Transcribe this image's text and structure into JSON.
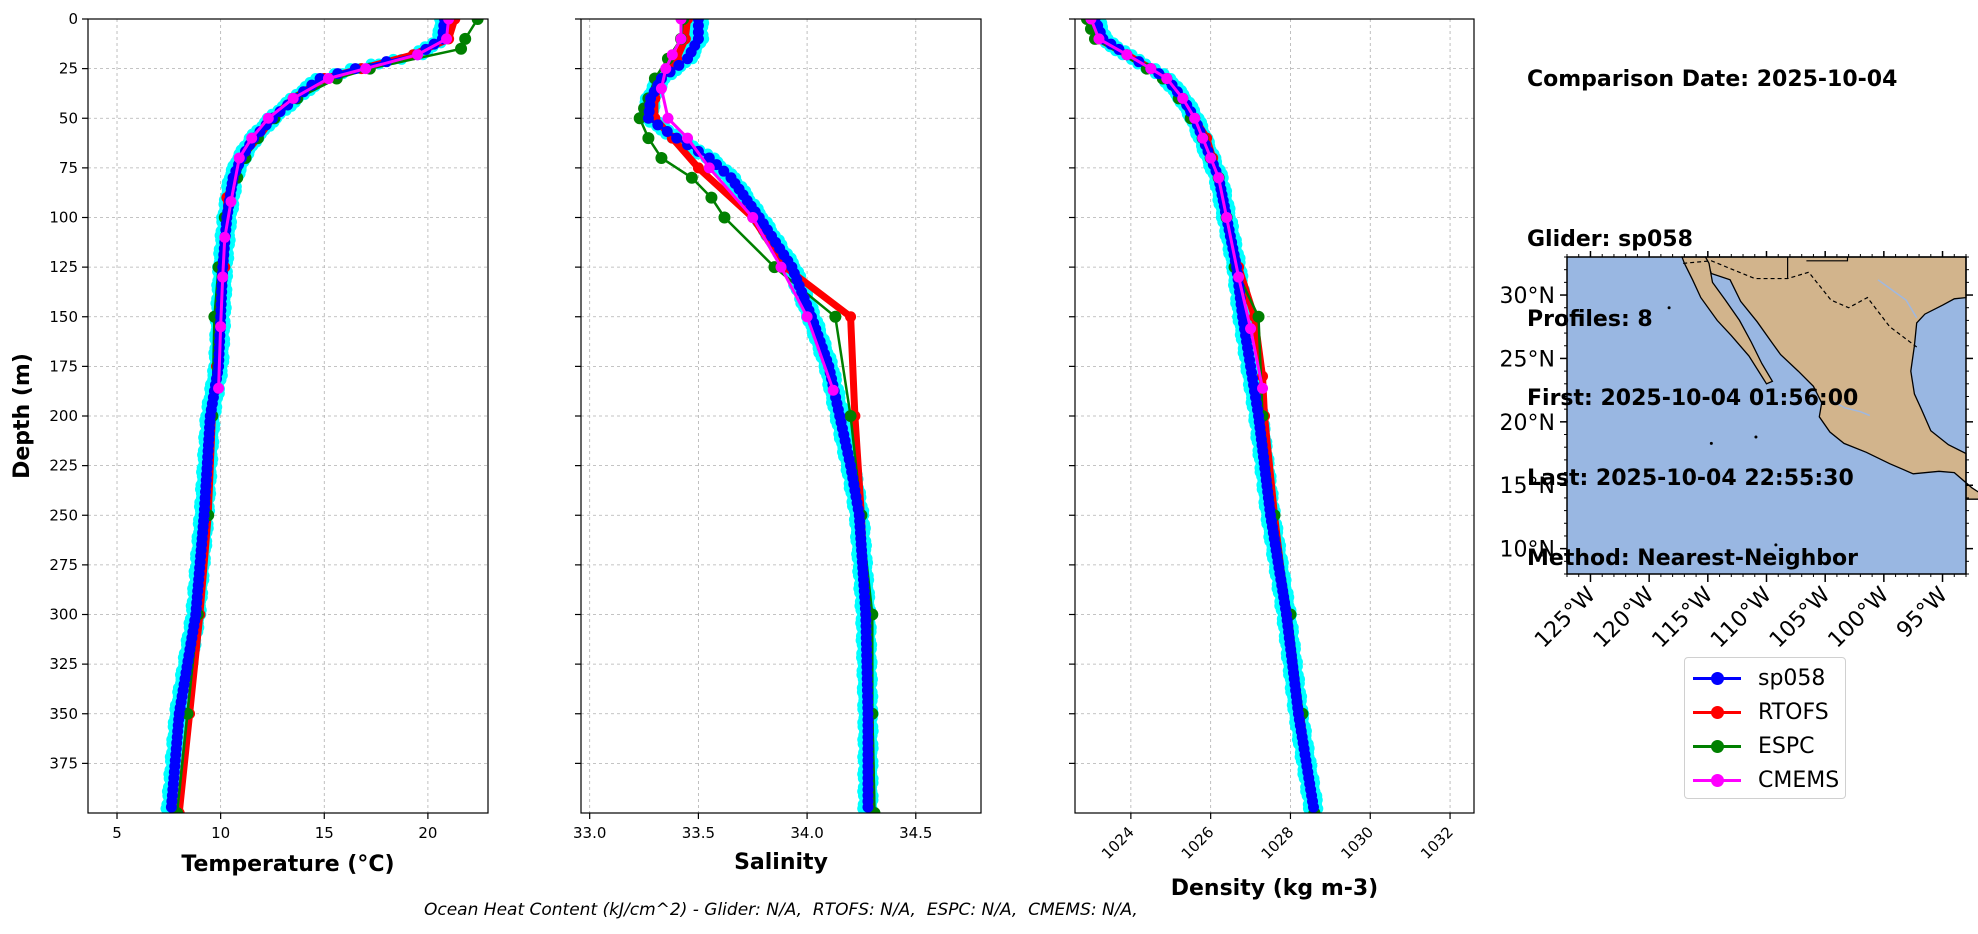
{
  "info": {
    "comparison_date": "Comparison Date: 2025-10-04",
    "glider": "Glider: sp058",
    "profiles": "Profiles: 8",
    "first": "First: 2025-10-04 01:56:00",
    "last": "Last: 2025-10-04 22:55:30",
    "method": "Method: Nearest-Neighbor"
  },
  "footer": "Ocean Heat Content (kJ/cm^2) - Glider: N/A,  RTOFS: N/A,  ESPC: N/A,  CMEMS: N/A,",
  "legend": [
    {
      "name": "sp058",
      "color": "#0000ff"
    },
    {
      "name": "RTOFS",
      "color": "#ff0000"
    },
    {
      "name": "ESPC",
      "color": "#008000"
    },
    {
      "name": "CMEMS",
      "color": "#ff00ff"
    }
  ],
  "colors": {
    "glider_points": "#00ffff",
    "land": "#d2b48c",
    "ocean": "#99b7e2",
    "grid": "#b0b0b0"
  },
  "chart_data": [
    {
      "type": "line",
      "title": "",
      "xlabel": "Temperature (°C)",
      "ylabel": "Depth (m)",
      "xlim": [
        3.6,
        22.9
      ],
      "ylim": [
        400,
        0
      ],
      "xticks": [
        5,
        10,
        15,
        20
      ],
      "yticks": [
        0,
        25,
        50,
        75,
        100,
        125,
        150,
        175,
        200,
        225,
        250,
        275,
        300,
        325,
        350,
        375
      ],
      "grid": true,
      "series": [
        {
          "name": "sp058",
          "depth": [
            0,
            10,
            18,
            25,
            30,
            40,
            50,
            60,
            70,
            80,
            100,
            125,
            150,
            175,
            200,
            250,
            300,
            350,
            400
          ],
          "values": [
            20.8,
            20.7,
            19.5,
            16.5,
            14.8,
            13.6,
            12.5,
            11.6,
            11.0,
            10.6,
            10.3,
            10.1,
            10.0,
            9.9,
            9.5,
            9.2,
            8.8,
            8.0,
            7.6
          ]
        },
        {
          "name": "RTOFS",
          "depth": [
            0,
            10,
            18,
            25,
            30,
            40,
            50,
            60,
            70,
            90,
            125,
            150,
            175,
            200,
            250,
            300,
            350,
            400
          ],
          "values": [
            21.3,
            21.0,
            19.3,
            16.8,
            15.0,
            13.5,
            12.5,
            11.8,
            11.0,
            10.3,
            10.2,
            10.0,
            9.8,
            9.6,
            9.4,
            9.0,
            8.5,
            8.0
          ]
        },
        {
          "name": "ESPC",
          "depth": [
            0,
            10,
            15,
            25,
            30,
            40,
            50,
            60,
            70,
            80,
            100,
            125,
            150,
            200,
            250,
            300,
            350,
            400
          ],
          "values": [
            22.4,
            21.8,
            21.6,
            17.2,
            15.6,
            13.7,
            12.6,
            11.8,
            11.2,
            10.8,
            10.2,
            9.9,
            9.7,
            9.6,
            9.4,
            8.9,
            8.4,
            7.9
          ]
        },
        {
          "name": "CMEMS",
          "depth": [
            0,
            10,
            18,
            25,
            30,
            40,
            50,
            60,
            70,
            92,
            110,
            130,
            155,
            186
          ],
          "values": [
            21.0,
            20.9,
            19.5,
            17.0,
            15.2,
            13.5,
            12.3,
            11.5,
            10.9,
            10.5,
            10.2,
            10.1,
            10.0,
            9.9
          ]
        }
      ]
    },
    {
      "type": "line",
      "title": "",
      "xlabel": "Salinity",
      "ylabel": "",
      "xlim": [
        32.96,
        34.8
      ],
      "ylim": [
        400,
        0
      ],
      "xticks": [
        33.0,
        33.5,
        34.0,
        34.5
      ],
      "grid": true,
      "series": [
        {
          "name": "sp058",
          "depth": [
            0,
            10,
            20,
            30,
            40,
            50,
            60,
            70,
            80,
            100,
            125,
            150,
            175,
            200,
            225,
            250,
            300,
            350,
            400
          ],
          "values": [
            33.5,
            33.5,
            33.45,
            33.33,
            33.28,
            33.27,
            33.4,
            33.55,
            33.65,
            33.78,
            33.93,
            34.02,
            34.1,
            34.15,
            34.2,
            34.24,
            34.27,
            34.28,
            34.28
          ]
        },
        {
          "name": "RTOFS",
          "depth": [
            0,
            10,
            20,
            30,
            40,
            50,
            60,
            75,
            100,
            125,
            150,
            200,
            250,
            300,
            350,
            400
          ],
          "values": [
            33.45,
            33.44,
            33.4,
            33.33,
            33.3,
            33.3,
            33.38,
            33.5,
            33.75,
            33.9,
            34.2,
            34.22,
            34.25,
            34.27,
            34.29,
            34.3
          ]
        },
        {
          "name": "ESPC",
          "depth": [
            0,
            10,
            20,
            30,
            40,
            45,
            50,
            60,
            70,
            80,
            90,
            100,
            125,
            150,
            200,
            250,
            300,
            350,
            400
          ],
          "values": [
            33.43,
            33.42,
            33.36,
            33.3,
            33.27,
            33.25,
            33.23,
            33.27,
            33.33,
            33.47,
            33.56,
            33.62,
            33.85,
            34.13,
            34.2,
            34.25,
            34.3,
            34.3,
            34.31
          ]
        },
        {
          "name": "CMEMS",
          "depth": [
            0,
            10,
            18,
            25,
            35,
            50,
            60,
            75,
            100,
            125,
            150,
            187
          ],
          "values": [
            33.42,
            33.42,
            33.38,
            33.35,
            33.33,
            33.36,
            33.45,
            33.55,
            33.75,
            33.88,
            34.0,
            34.12
          ]
        }
      ]
    },
    {
      "type": "line",
      "title": "",
      "xlabel": "Density (kg m-3)",
      "ylabel": "",
      "xlim": [
        1022.6,
        1032.6
      ],
      "ylim": [
        400,
        0
      ],
      "xticks": [
        1024,
        1026,
        1028,
        1030,
        1032
      ],
      "grid": true,
      "series": [
        {
          "name": "sp058",
          "depth": [
            0,
            10,
            18,
            25,
            30,
            40,
            50,
            60,
            70,
            80,
            100,
            125,
            150,
            175,
            200,
            250,
            300,
            350,
            400
          ],
          "values": [
            1023.1,
            1023.3,
            1023.9,
            1024.5,
            1024.9,
            1025.3,
            1025.6,
            1025.8,
            1026.0,
            1026.2,
            1026.4,
            1026.65,
            1026.8,
            1027.0,
            1027.2,
            1027.5,
            1027.9,
            1028.2,
            1028.6
          ]
        },
        {
          "name": "RTOFS",
          "depth": [
            0,
            10,
            18,
            25,
            30,
            40,
            50,
            60,
            70,
            80,
            100,
            125,
            150,
            180,
            200,
            250,
            300,
            350,
            400
          ],
          "values": [
            1023.0,
            1023.2,
            1023.9,
            1024.5,
            1024.9,
            1025.3,
            1025.6,
            1025.9,
            1026.05,
            1026.2,
            1026.4,
            1026.7,
            1027.1,
            1027.3,
            1027.35,
            1027.6,
            1027.9,
            1028.25,
            1028.6
          ]
        },
        {
          "name": "ESPC",
          "depth": [
            0,
            5,
            10,
            25,
            30,
            40,
            50,
            60,
            70,
            80,
            100,
            125,
            150,
            200,
            250,
            300,
            350,
            400
          ],
          "values": [
            1022.9,
            1023.0,
            1023.1,
            1024.4,
            1024.8,
            1025.2,
            1025.5,
            1025.8,
            1026.0,
            1026.2,
            1026.4,
            1026.6,
            1027.2,
            1027.3,
            1027.6,
            1028.0,
            1028.3,
            1028.6
          ]
        },
        {
          "name": "CMEMS",
          "depth": [
            0,
            10,
            18,
            25,
            30,
            40,
            50,
            60,
            70,
            80,
            100,
            130,
            156,
            186
          ],
          "values": [
            1023.0,
            1023.2,
            1023.9,
            1024.5,
            1024.9,
            1025.3,
            1025.6,
            1025.8,
            1026.0,
            1026.2,
            1026.4,
            1026.7,
            1027.0,
            1027.3
          ]
        }
      ]
    },
    {
      "type": "map",
      "title": "",
      "lon_ticks": [
        "125°W",
        "120°W",
        "115°W",
        "110°W",
        "105°W",
        "100°W",
        "95°W"
      ],
      "lat_ticks": [
        "30°N",
        "25°N",
        "20°N",
        "15°N",
        "10°N"
      ]
    }
  ]
}
